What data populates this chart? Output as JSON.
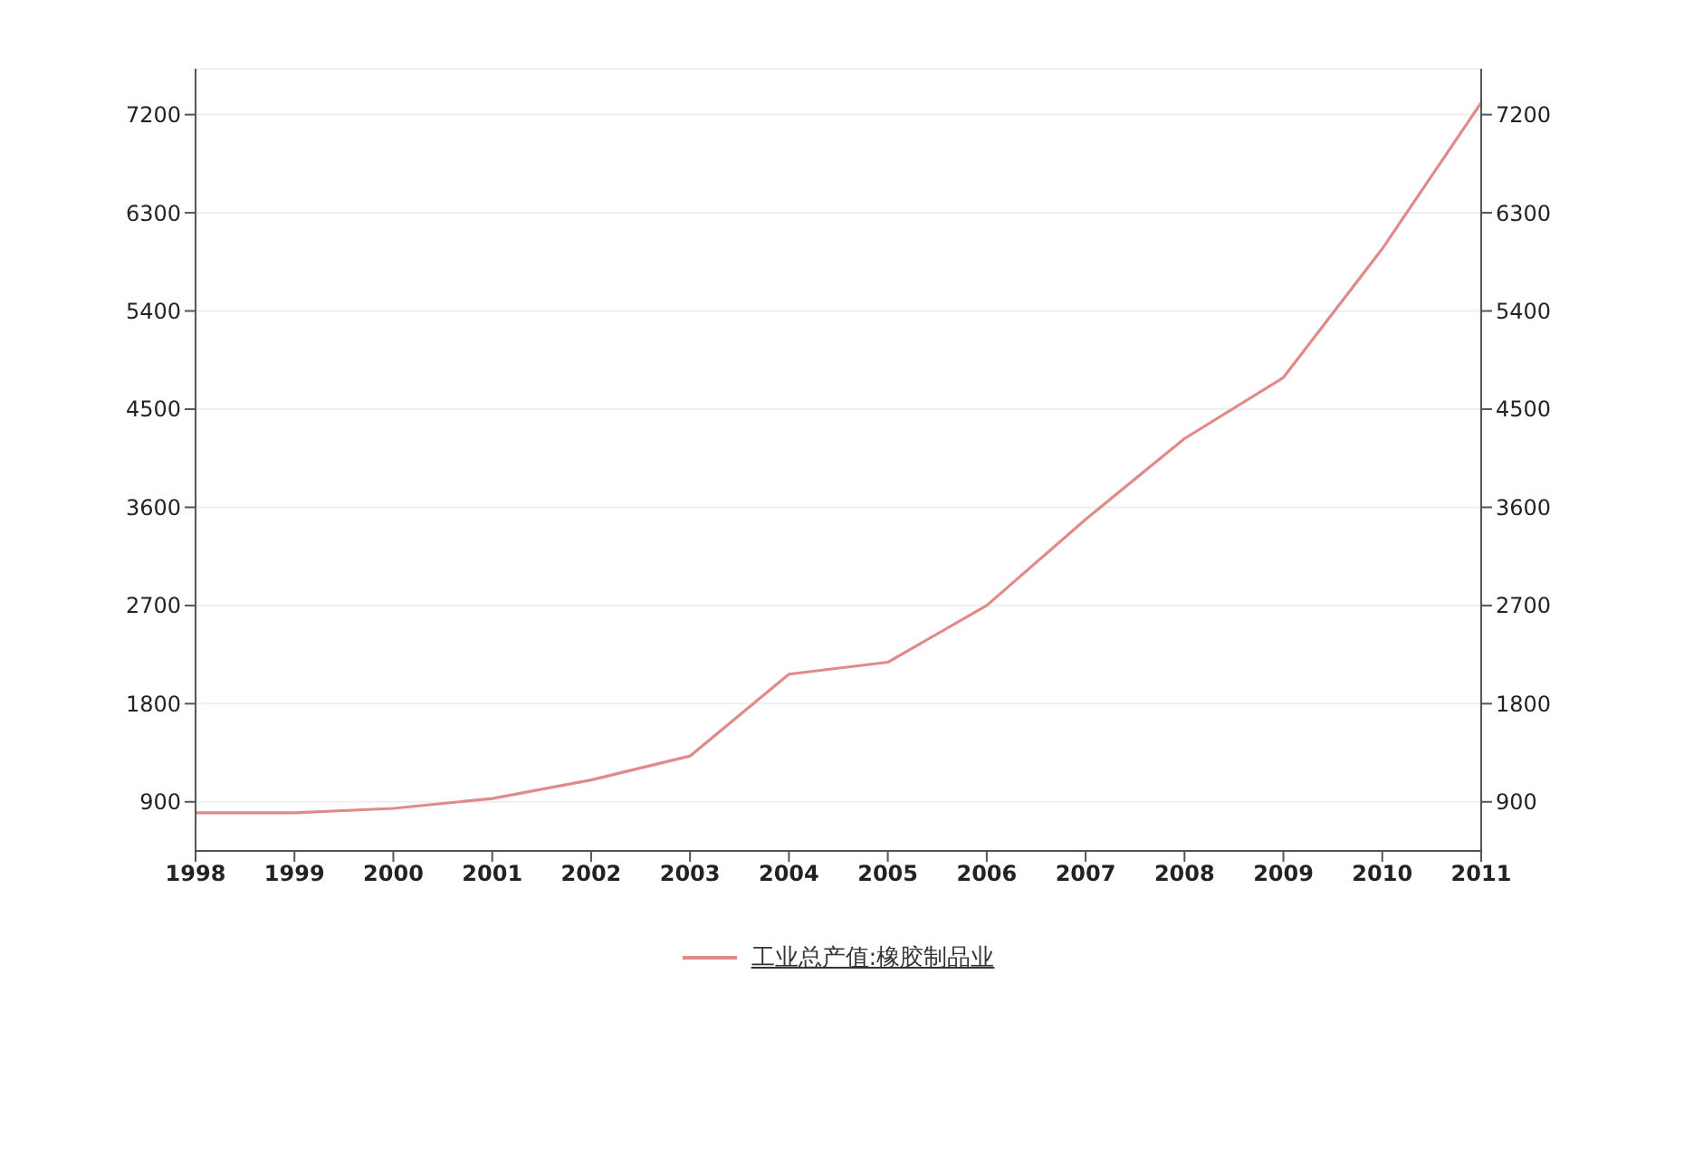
{
  "chart_data": {
    "type": "line",
    "x": [
      1998,
      1999,
      2000,
      2001,
      2002,
      2003,
      2004,
      2005,
      2006,
      2007,
      2008,
      2009,
      2010,
      2011
    ],
    "series": [
      {
        "name": "工业总产值:橡胶制品业",
        "color": "#e08a8a",
        "values": [
          800,
          800,
          840,
          930,
          1100,
          1320,
          2070,
          2180,
          2700,
          3490,
          4230,
          4790,
          5970,
          7310
        ]
      }
    ],
    "xlim": [
      1998,
      2011
    ],
    "xticks": [
      1998,
      1999,
      2000,
      2001,
      2002,
      2003,
      2004,
      2005,
      2006,
      2007,
      2008,
      2009,
      2010,
      2011
    ],
    "ylim": [
      450,
      7620
    ],
    "yticks": [
      900,
      1800,
      2700,
      3600,
      4500,
      5400,
      6300,
      7200
    ],
    "y2lim": [
      450,
      7620
    ],
    "y2ticks": [
      900,
      1800,
      2700,
      3600,
      4500,
      5400,
      6300,
      7200
    ],
    "grid": "y",
    "legend": "bottom",
    "marker": "none",
    "line_style": "solid"
  }
}
